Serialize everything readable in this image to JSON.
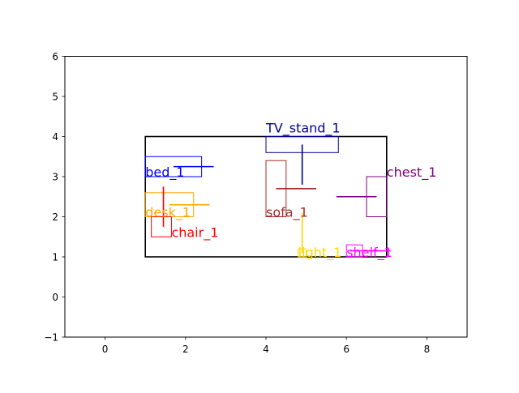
{
  "chart_data": {
    "type": "scatter",
    "title": "",
    "xlabel": "",
    "ylabel": "",
    "xlim": [
      -1,
      9
    ],
    "ylim": [
      -1,
      6
    ],
    "x_ticks": [
      "0",
      "2",
      "4",
      "6",
      "8"
    ],
    "y_ticks": [
      "−1",
      "0",
      "1",
      "2",
      "3",
      "4",
      "5",
      "6"
    ],
    "grid": false,
    "room": {
      "x": [
        1,
        7
      ],
      "y": [
        1,
        4
      ],
      "color": "#000000"
    },
    "objects": [
      {
        "name": "TV_stand_1",
        "color": "#00008b",
        "box": {
          "x": [
            4.0,
            5.8
          ],
          "y": [
            3.6,
            4.0
          ]
        },
        "marker": {
          "x": 4.9,
          "y": 3.3,
          "orientation": "vertical",
          "length": 1.0
        },
        "label": {
          "x": 4.0,
          "y": 4.1
        }
      },
      {
        "name": "bed_1",
        "color": "#0000ff",
        "box": {
          "x": [
            1.0,
            2.4
          ],
          "y": [
            3.0,
            3.5
          ]
        },
        "marker": {
          "x": 2.2,
          "y": 3.25,
          "orientation": "horizontal",
          "length": 1.0
        },
        "label": {
          "x": 1.0,
          "y": 3.0
        }
      },
      {
        "name": "chest_1",
        "color": "#800080",
        "box": {
          "x": [
            6.5,
            7.0
          ],
          "y": [
            2.0,
            3.0
          ]
        },
        "marker": {
          "x": 6.25,
          "y": 2.5,
          "orientation": "horizontal",
          "length": 1.0
        },
        "label": {
          "x": 7.0,
          "y": 3.0
        }
      },
      {
        "name": "sofa_1",
        "color": "#a52a2a",
        "box": {
          "x": [
            4.0,
            4.5
          ],
          "y": [
            2.0,
            3.4
          ]
        },
        "marker": {
          "x": 4.75,
          "y": 2.7,
          "orientation": "horizontal",
          "length": 1.0
        },
        "label": {
          "x": 4.0,
          "y": 2.0
        }
      },
      {
        "name": "desk_1",
        "color": "#ffa500",
        "box": {
          "x": [
            1.0,
            2.2
          ],
          "y": [
            2.0,
            2.6
          ]
        },
        "marker": {
          "x": 2.1,
          "y": 2.3,
          "orientation": "horizontal",
          "length": 1.0
        },
        "label": {
          "x": 1.0,
          "y": 2.0
        }
      },
      {
        "name": "chair_1",
        "color": "#ff0000",
        "box": {
          "x": [
            1.15,
            1.65
          ],
          "y": [
            1.5,
            2.0
          ]
        },
        "marker": {
          "x": 1.45,
          "y": 2.25,
          "orientation": "vertical",
          "length": 1.0
        },
        "label": {
          "x": 1.65,
          "y": 1.5
        }
      },
      {
        "name": "light_1",
        "color": "#ffd700",
        "box": {
          "x": [
            4.8,
            5.0
          ],
          "y": [
            1.0,
            1.2
          ]
        },
        "marker": {
          "x": 4.9,
          "y": 1.6,
          "orientation": "vertical",
          "length": 1.0
        },
        "label": {
          "x": 4.8,
          "y": 1.0
        }
      },
      {
        "name": "shelf_1",
        "color": "#ff00ff",
        "box": {
          "x": [
            6.0,
            6.4
          ],
          "y": [
            1.0,
            1.3
          ]
        },
        "marker": {
          "x": 6.6,
          "y": 1.15,
          "orientation": "horizontal",
          "length": 1.0
        },
        "label": {
          "x": 6.0,
          "y": 1.0
        }
      }
    ]
  }
}
